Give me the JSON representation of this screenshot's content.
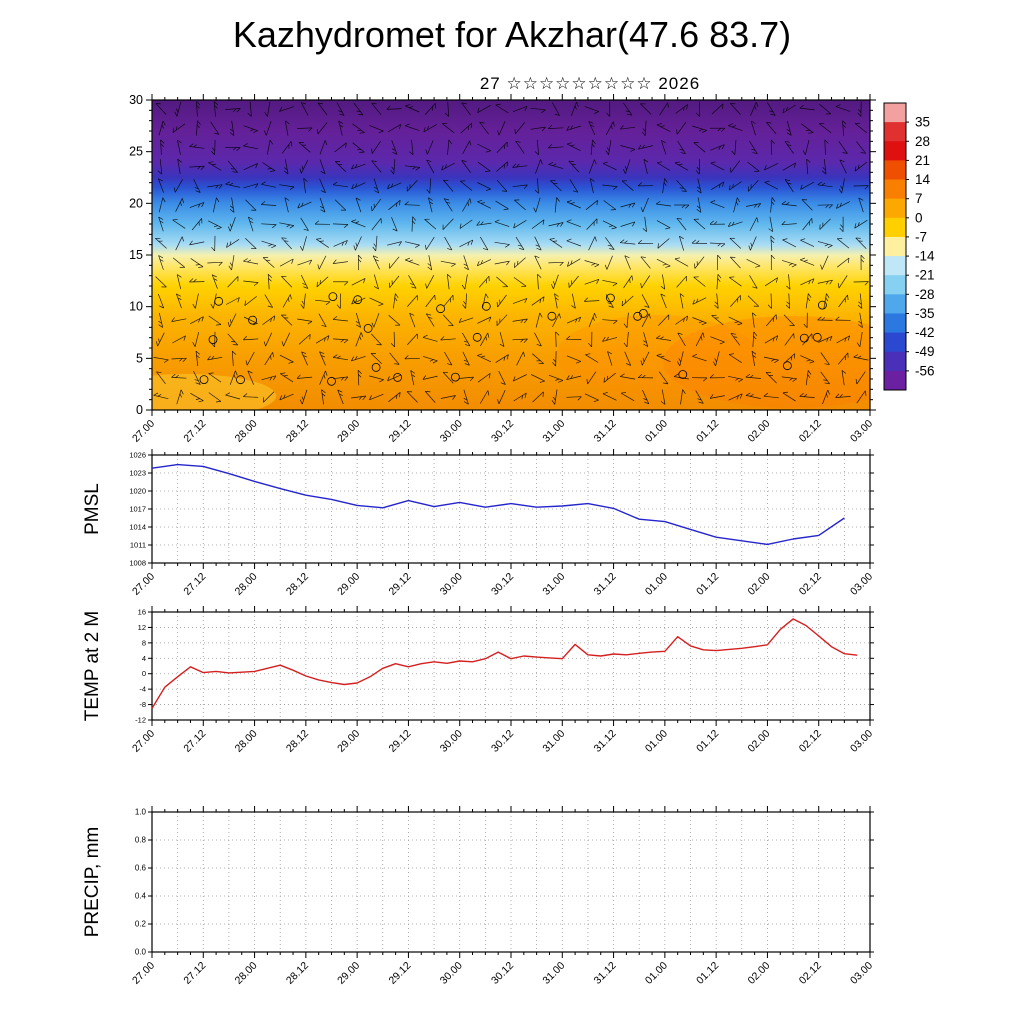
{
  "title": "Kazhydromet for Akzhar(47.6 83.7)",
  "subtitle": "27 ☆☆☆☆☆☆☆☆☆ 2026",
  "time_labels": [
    "27.00",
    "27.12",
    "28.00",
    "28.12",
    "29.00",
    "29.12",
    "30.00",
    "30.12",
    "31.00",
    "31.12",
    "01.00",
    "01.12",
    "02.00",
    "02.12",
    "03.00"
  ],
  "colorbar": {
    "tick_labels": [
      "35",
      "28",
      "21",
      "14",
      "7",
      "0",
      "-7",
      "-14",
      "-21",
      "-28",
      "-35",
      "-42",
      "-49",
      "-56"
    ],
    "segment_colors_top_to_bottom": [
      "#f2a0a0",
      "#e03030",
      "#de1010",
      "#ef4f00",
      "#f87f00",
      "#fba800",
      "#ffcf00",
      "#fff0a0",
      "#bfe7f8",
      "#86d0f2",
      "#4fa8ec",
      "#2a78e0",
      "#2a48d0",
      "#4a30b8",
      "#6a20a0"
    ]
  },
  "chart_data": [
    {
      "type": "heatmap",
      "name": "temperature-height-cross-section",
      "x_range_hours": [
        0,
        168
      ],
      "ylim": [
        0,
        30
      ],
      "yticks": [
        "0",
        "5",
        "10",
        "15",
        "20",
        "25",
        "30"
      ],
      "overlay": "wind-barbs",
      "gradient_levels": [
        {
          "level": 0,
          "color": "#f28c00"
        },
        {
          "level": 5,
          "color": "#f89e00"
        },
        {
          "level": 9,
          "color": "#fcb400"
        },
        {
          "level": 12,
          "color": "#ffd200"
        },
        {
          "level": 14,
          "color": "#ffe870"
        },
        {
          "level": 15,
          "color": "#f4f0b0"
        },
        {
          "level": 16,
          "color": "#a8dcf4"
        },
        {
          "level": 18,
          "color": "#60b8ee"
        },
        {
          "level": 20,
          "color": "#3a8ce6"
        },
        {
          "level": 21.5,
          "color": "#2a54d4"
        },
        {
          "level": 22.5,
          "color": "#3a34bc"
        },
        {
          "level": 24,
          "color": "#5c28ac"
        },
        {
          "level": 27,
          "color": "#642098"
        },
        {
          "level": 30,
          "color": "#521a80"
        }
      ]
    },
    {
      "type": "line",
      "name": "pmsl",
      "ylabel": "PMSL",
      "color": "#2525cc",
      "ylim": [
        1008,
        1026
      ],
      "yticks": [
        "1008",
        "1011",
        "1014",
        "1017",
        "1020",
        "1023",
        "1026"
      ],
      "x": [
        0,
        6,
        12,
        18,
        24,
        30,
        36,
        42,
        48,
        54,
        60,
        66,
        72,
        78,
        84,
        90,
        96,
        102,
        108,
        114,
        120,
        126,
        132,
        138,
        144,
        150,
        156,
        162
      ],
      "values": [
        1023.8,
        1024.4,
        1024.1,
        1022.9,
        1021.6,
        1020.4,
        1019.3,
        1018.6,
        1017.6,
        1017.2,
        1018.4,
        1017.4,
        1018.1,
        1017.3,
        1017.9,
        1017.3,
        1017.5,
        1017.9,
        1017.1,
        1015.3,
        1014.9,
        1013.6,
        1012.3,
        1011.7,
        1011.1,
        1012.0,
        1012.6,
        1015.5
      ]
    },
    {
      "type": "line",
      "name": "temp-2m",
      "ylabel": "TEMP at 2 M",
      "color": "#d42020",
      "ylim": [
        -12,
        16
      ],
      "yticks": [
        "-12",
        "-8",
        "-4",
        "0",
        "4",
        "8",
        "12",
        "16"
      ],
      "x": [
        0,
        3,
        6,
        9,
        12,
        15,
        18,
        21,
        24,
        27,
        30,
        33,
        36,
        39,
        42,
        45,
        48,
        51,
        54,
        57,
        60,
        63,
        66,
        69,
        72,
        75,
        78,
        81,
        84,
        87,
        90,
        93,
        96,
        99,
        102,
        105,
        108,
        111,
        114,
        117,
        120,
        123,
        126,
        129,
        132,
        135,
        138,
        141,
        144,
        147,
        150,
        153,
        156,
        159,
        162,
        165
      ],
      "values": [
        -9.0,
        -3.5,
        -0.8,
        1.8,
        0.3,
        0.6,
        0.2,
        0.4,
        0.6,
        1.4,
        2.2,
        0.9,
        -0.6,
        -1.6,
        -2.3,
        -2.8,
        -2.4,
        -0.8,
        1.4,
        2.6,
        1.8,
        2.6,
        3.1,
        2.7,
        3.3,
        3.1,
        3.9,
        5.6,
        3.9,
        4.6,
        4.3,
        4.1,
        3.9,
        7.6,
        4.9,
        4.6,
        5.1,
        4.9,
        5.3,
        5.6,
        5.8,
        9.6,
        7.2,
        6.2,
        6.0,
        6.3,
        6.6,
        7.0,
        7.5,
        11.5,
        14.2,
        12.5,
        9.8,
        7.0,
        5.2,
        4.8
      ]
    },
    {
      "type": "line",
      "name": "precip",
      "ylabel": "PRECIP, mm",
      "color": "#2525cc",
      "ylim": [
        0,
        1
      ],
      "yticks": [
        "0.0",
        "0.2",
        "0.4",
        "0.6",
        "0.8",
        "1.0"
      ],
      "x": [],
      "values": []
    }
  ]
}
